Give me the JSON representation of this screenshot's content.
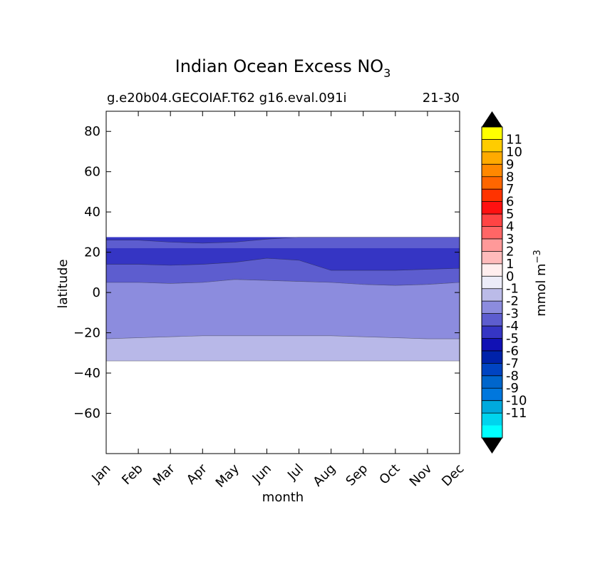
{
  "chart_data": {
    "type": "filled-contour",
    "title": "Indian Ocean Excess NO",
    "title_subscript": "3",
    "subtitle_left": "g.e20b04.GECOIAF.T62 g16.eval.091i",
    "subtitle_right": "21-30",
    "xlabel": "month",
    "ylabel": "latitude",
    "x_categories": [
      "Jan",
      "Feb",
      "Mar",
      "Apr",
      "May",
      "Jun",
      "Jul",
      "Aug",
      "Sep",
      "Oct",
      "Nov",
      "Dec"
    ],
    "ylim": [
      -80,
      90
    ],
    "y_ticks": [
      80,
      60,
      40,
      20,
      0,
      -20,
      -40,
      -60
    ],
    "y_tick_labels": [
      "80",
      "60",
      "40",
      "20",
      "0",
      "−20",
      "−40",
      "−60"
    ],
    "colorbar": {
      "label": "mmol m",
      "label_superscript": "−3",
      "levels": [
        "11",
        "10",
        "9",
        "8",
        "7",
        "6",
        "5",
        "4",
        "3",
        "2",
        "1",
        "0",
        "-1",
        "-2",
        "-3",
        "-4",
        "-5",
        "-6",
        "-7",
        "-8",
        "-9",
        "-10",
        "-11"
      ],
      "bin_colors": [
        "#ffff00",
        "#ffcc00",
        "#ffaa00",
        "#ff8800",
        "#ff6600",
        "#ff3300",
        "#ff1111",
        "#ff4444",
        "#ff6666",
        "#ff9999",
        "#ffbbbb",
        "#ffeeee",
        "#ececf8",
        "#bbbbe8",
        "#8c8cde",
        "#5d5dcf",
        "#3535c4",
        "#1111b4",
        "#0022aa",
        "#0044c2",
        "#0066cc",
        "#0077dd",
        "#00aadd",
        "#00d4ee",
        "#00ffff"
      ],
      "extend_color": "#000000"
    },
    "regions": [
      {
        "name": "band -2 to -1",
        "color": "#b8b8e8",
        "lat_bottom": -34,
        "lat_top_by_month": [
          -23,
          -22.5,
          -22,
          -21.5,
          -21.5,
          -21.5,
          -21.5,
          -21.5,
          -22,
          -22.5,
          -23,
          -23
        ]
      },
      {
        "name": "band -3 to -2",
        "color": "#8c8cde",
        "lat_bottom_by_month": [
          -23,
          -22.5,
          -22,
          -21.5,
          -21.5,
          -21.5,
          -21.5,
          -21.5,
          -22,
          -22.5,
          -23,
          -23
        ],
        "lat_top_by_month": [
          5,
          5,
          4.5,
          5,
          6.5,
          6,
          5.5,
          5,
          4,
          3.5,
          4,
          5
        ]
      },
      {
        "name": "band -4 to -3",
        "color": "#5d5dcf",
        "lat_bottom_by_month": [
          5,
          5,
          4.5,
          5,
          6.5,
          6,
          5.5,
          5,
          4,
          3.5,
          4,
          5
        ],
        "lat_top": 27.5
      },
      {
        "name": "band -5 to -4",
        "color": "#3535c4",
        "lat_bottom_by_month": [
          14,
          14,
          13.5,
          14,
          15,
          17,
          16,
          11,
          11,
          11,
          11.5,
          12
        ],
        "lat_top_by_month": [
          22,
          22,
          22,
          22,
          22,
          22,
          22,
          22,
          22,
          22,
          22,
          22
        ]
      },
      {
        "name": "band -5 to -4 upper",
        "color": "#3535c4",
        "lat_bottom_by_month": [
          26,
          26,
          25,
          24.5,
          25,
          26.5,
          27.5,
          27.5,
          27.5,
          27.5,
          27.5,
          27.5
        ],
        "lat_top": 27.5
      }
    ]
  }
}
